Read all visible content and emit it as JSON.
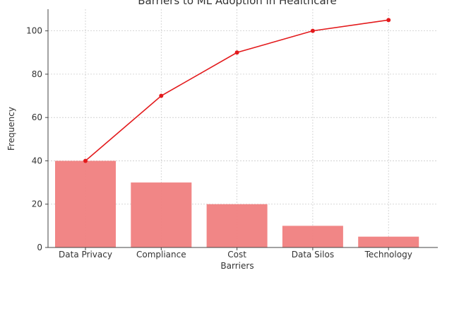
{
  "chart_data": {
    "type": "bar",
    "title": "Barriers to ML Adoption in Healthcare",
    "xlabel": "Barriers",
    "ylabel": "Frequency",
    "categories": [
      "Data Privacy",
      "Compliance",
      "Cost",
      "Data Silos",
      "Technology"
    ],
    "series": [
      {
        "type": "bar",
        "values": [
          40,
          30,
          20,
          10,
          5
        ],
        "color": "#f08080"
      },
      {
        "type": "line",
        "values": [
          40,
          70,
          90,
          100,
          105
        ],
        "color": "#e31a1c",
        "marker": "circle"
      }
    ],
    "ylim": [
      0,
      110
    ],
    "yticks": [
      0,
      20,
      40,
      60,
      80,
      100
    ],
    "grid": true
  }
}
